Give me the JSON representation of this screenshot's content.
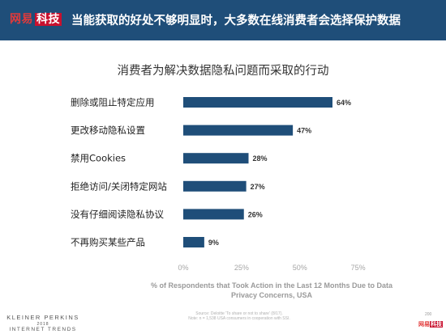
{
  "header": {
    "logo_part1": "网易",
    "logo_part2": "科技",
    "title": "当能获取的好处不够明显时，大多数在线消费者会选择保护数据"
  },
  "chart_data": {
    "type": "bar",
    "orientation": "horizontal",
    "title": "消费者为解决数据隐私问题而采取的行动",
    "categories": [
      "删除或阻止特定应用",
      "更改移动隐私设置",
      "禁用Cookies",
      "拒绝访问/关闭特定网站",
      "没有仔细阅读隐私协议",
      "不再购买某些产品"
    ],
    "values": [
      64,
      47,
      28,
      27,
      26,
      9
    ],
    "value_labels": [
      "64%",
      "47%",
      "28%",
      "27%",
      "26%",
      "9%"
    ],
    "xlim": [
      0,
      75
    ],
    "xticks": [
      0,
      25,
      50,
      75
    ],
    "xtick_labels": [
      "0%",
      "25%",
      "50%",
      "75%"
    ],
    "xlabel_line1": "% of Respondents that Took Action in the Last 12 Months Due to Data",
    "xlabel_line2": "Privacy Concerns, USA",
    "grid": false,
    "bar_color": "#1f4e79"
  },
  "footer": {
    "source_line1": "Source: Deloitte 'To share or not to share' (8/17).",
    "source_line2": "Note: n = 1,538 USA consumers in cooperation with SSI.",
    "kp_line1": "KLEINER PERKINS",
    "kp_line2": "2018",
    "kp_line3": "INTERNET TRENDS",
    "page_number": "200",
    "watermark_part1": "网易",
    "watermark_part2": "科技"
  }
}
